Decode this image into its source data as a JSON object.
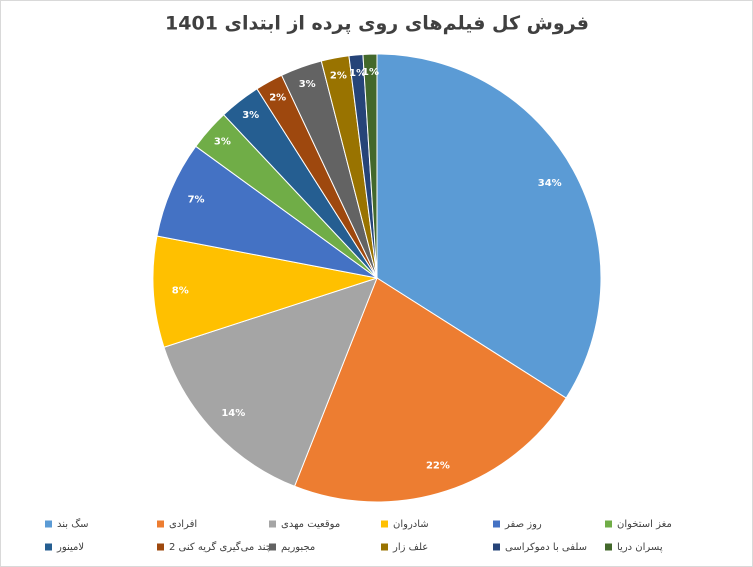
{
  "chart_data": {
    "type": "pie",
    "title": "فروش کل فیلم‌های روی پرده از ابتدای 1401",
    "categories": [
      "سگ بند",
      "افرادی",
      "موقعیت مهدی",
      "شادروان",
      "روز صفر",
      "مغز استخوان",
      "لامینور",
      "چند می‌گیری گریه کنی 2",
      "مجبوریم",
      "علف زار",
      "سلفی با دموکراسی",
      "پسران دریا"
    ],
    "values": [
      34,
      22,
      14,
      8,
      7,
      3,
      3,
      2,
      3,
      2,
      1,
      1
    ],
    "value_labels": [
      "34%",
      "22%",
      "14%",
      "8%",
      "7%",
      "3%",
      "3%",
      "2%",
      "3%",
      "2%",
      "1%",
      "1%"
    ],
    "colors": [
      "#5b9bd5",
      "#ed7d31",
      "#a5a5a5",
      "#ffc000",
      "#4472c4",
      "#70ad47",
      "#255e91",
      "#9e480e",
      "#636363",
      "#997300",
      "#264478",
      "#43682b"
    ]
  }
}
